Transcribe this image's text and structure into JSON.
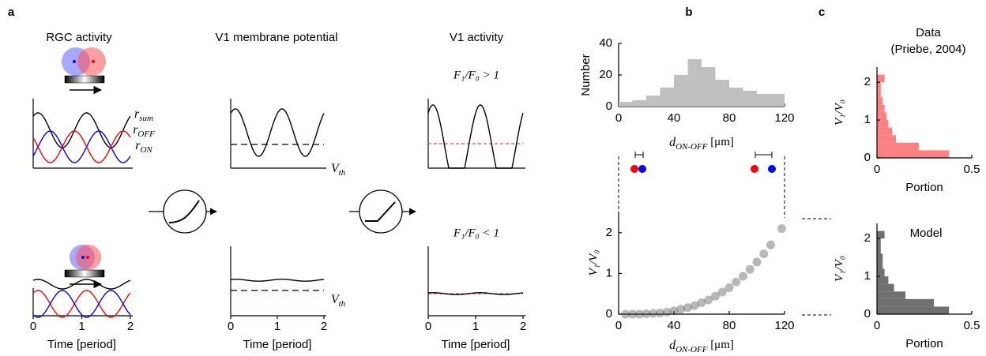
{
  "panel_labels": [
    "a",
    "b",
    "c"
  ],
  "panel_a": {
    "column_titles": [
      "RGC activity",
      "V1 membrane potential",
      "V1 activity"
    ],
    "rgc_legend": [
      {
        "base": "r",
        "sub": "sum"
      },
      {
        "base": "r",
        "sub": "OFF"
      },
      {
        "base": "r",
        "sub": "ON"
      }
    ],
    "legend_colors": [
      "#000000",
      "#0000ff",
      "#ff0000"
    ],
    "vth_labels": [
      {
        "base": "V",
        "sub": "th"
      },
      {
        "base": "V",
        "sub": "th"
      }
    ],
    "f_labels": [
      "F₁/F₀ > 1",
      "F₁/F₀ < 1"
    ],
    "xlim": [
      0,
      2
    ],
    "xticks": [
      0,
      1,
      2
    ],
    "xlabel": "Time [period]"
  },
  "panel_b": {
    "histogram": {
      "type": "histogram",
      "ylabel": "Number",
      "color": "#c0c0c0",
      "bins": [
        0,
        10,
        20,
        30,
        40,
        50,
        60,
        70,
        80,
        90,
        100,
        110,
        120
      ],
      "counts": [
        3,
        4,
        7,
        12,
        20,
        30,
        25,
        17,
        12,
        10,
        8,
        8
      ],
      "xlim": [
        0,
        120
      ],
      "xticks": [
        0,
        40,
        80,
        120
      ],
      "ylim": [
        0,
        40
      ],
      "yticks": [
        0,
        20,
        40
      ],
      "xlabel": {
        "base": "d",
        "sub": "ON-OFF",
        "rest": " [μm]"
      }
    },
    "scatter": {
      "type": "scatter",
      "ylabel": "V₁/V₀",
      "color": "#333333",
      "x": [
        5,
        10,
        15,
        20,
        25,
        30,
        35,
        40,
        45,
        50,
        55,
        60,
        65,
        70,
        75,
        80,
        85,
        90,
        95,
        100,
        105,
        110,
        118
      ],
      "y": [
        0,
        0,
        0,
        0.01,
        0.02,
        0.03,
        0.05,
        0.08,
        0.12,
        0.16,
        0.21,
        0.28,
        0.35,
        0.44,
        0.54,
        0.65,
        0.79,
        0.93,
        1.1,
        1.28,
        1.48,
        1.7,
        2.1
      ],
      "xlim": [
        0,
        120
      ],
      "xticks": [
        0,
        40,
        80,
        120
      ],
      "ylim": [
        0,
        2.5
      ],
      "yticks": [
        0,
        1,
        2
      ],
      "xlabel": {
        "base": "d",
        "sub": "ON-OFF",
        "rest": " [μm]"
      }
    }
  },
  "panel_c": {
    "data": {
      "type": "histogram",
      "title": "Data",
      "subtitle": "(Priebe, 2004)",
      "color": "#ff8080",
      "bins": [
        0,
        0.2,
        0.4,
        0.6,
        0.8,
        1,
        1.2,
        1.4,
        1.6,
        1.8,
        2,
        2.2
      ],
      "values": [
        0.38,
        0.22,
        0.1,
        0.08,
        0.06,
        0.05,
        0.04,
        0.03,
        0.02,
        0.02,
        0.04
      ],
      "ylabel": "V₁/V₀",
      "xlabel": "Portion",
      "xlim": [
        0,
        0.5
      ],
      "xticks": [
        0,
        0.5
      ],
      "ylim": [
        0,
        2.4
      ],
      "yticks": [
        0,
        1,
        2
      ]
    },
    "model": {
      "type": "histogram",
      "title": "Model",
      "color": "#707070",
      "bins": [
        0,
        0.2,
        0.4,
        0.6,
        0.8,
        1,
        1.2,
        1.4,
        1.6,
        1.8,
        2,
        2.2
      ],
      "values": [
        0.38,
        0.3,
        0.15,
        0.09,
        0.06,
        0.04,
        0.03,
        0.03,
        0.02,
        0.02,
        0.04
      ],
      "ylabel": "V₁/V₀",
      "xlabel": "Portion",
      "xlim": [
        0,
        0.5
      ],
      "xticks": [
        0,
        0.5
      ],
      "ylim": [
        0,
        2.4
      ],
      "yticks": [
        0,
        1,
        2
      ]
    }
  }
}
